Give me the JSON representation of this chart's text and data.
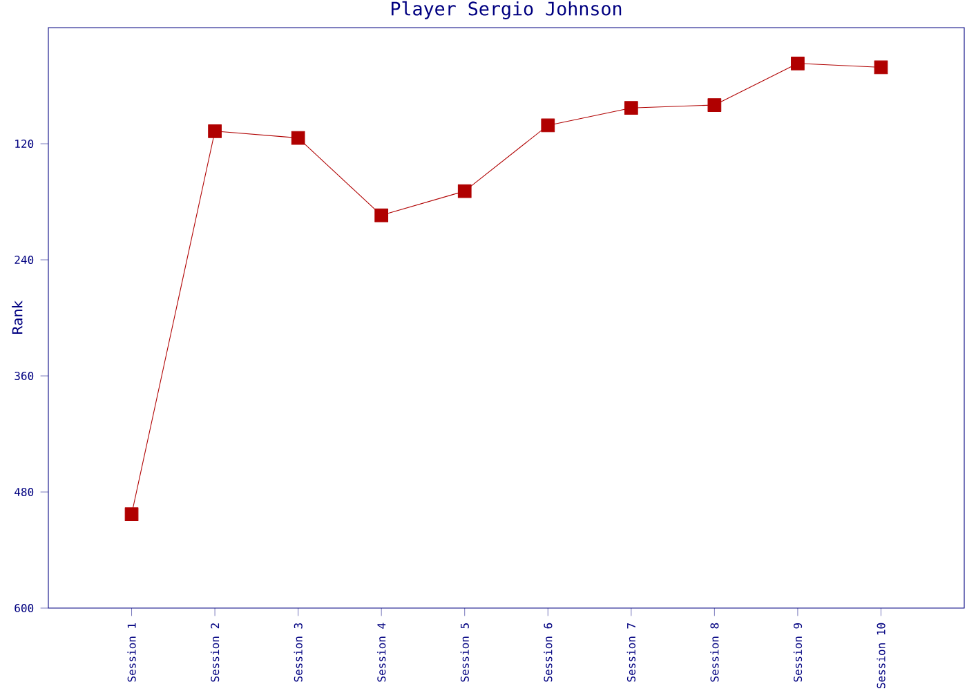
{
  "chart_data": {
    "type": "line",
    "title": "Player Sergio Johnson",
    "ylabel": "Rank",
    "categories": [
      "Session 1",
      "Session 2",
      "Session 3",
      "Session 4",
      "Session 5",
      "Session 6",
      "Session 7",
      "Session 8",
      "Session 9",
      "Session 10"
    ],
    "series": [
      {
        "color": "#b00000",
        "values": [
          503,
          107,
          114,
          194,
          169,
          101,
          83,
          80,
          37,
          41
        ]
      }
    ],
    "ylim": [
      600,
      0
    ],
    "yticks": [
      120,
      240,
      360,
      480,
      600
    ],
    "marker": "square",
    "line_style": "solid",
    "grid": false
  }
}
